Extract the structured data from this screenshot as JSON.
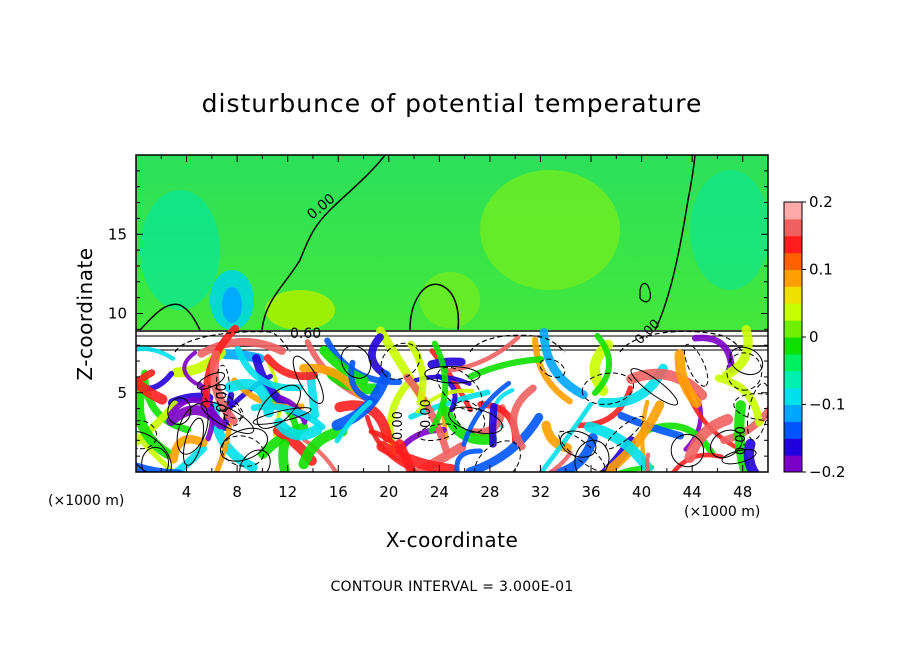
{
  "chart_data": {
    "type": "heatmap",
    "title": "disturbunce of potential temperature",
    "xlabel": "X-coordinate",
    "ylabel": "Z-coordinate",
    "x_unit": "(×1000 m)",
    "z_unit": "(×1000 m)",
    "xlim": [
      0,
      50
    ],
    "ylim": [
      0,
      20
    ],
    "xticks": [
      4,
      8,
      12,
      16,
      20,
      24,
      28,
      32,
      36,
      40,
      44,
      48
    ],
    "yticks": [
      5,
      10,
      15
    ],
    "colorbar": {
      "min": -0.2,
      "max": 0.2,
      "ticks": [
        "0.2",
        "0.1",
        "0",
        "−0.1",
        "−0.2"
      ],
      "colors": [
        "#7b00c8",
        "#2200dc",
        "#0055ff",
        "#00a6ff",
        "#00e0ea",
        "#00f0b0",
        "#00f060",
        "#10e000",
        "#70f000",
        "#c8ff00",
        "#f0e000",
        "#ffa000",
        "#ff6000",
        "#ff1e1e",
        "#f06060",
        "#ffaaaa"
      ]
    },
    "contour_labels": [
      "0.00",
      "0.60",
      "0.00",
      "0.00",
      "0.00",
      "0.00",
      "0.00"
    ],
    "footer": "CONTOUR INTERVAL = 3.000E-01"
  }
}
